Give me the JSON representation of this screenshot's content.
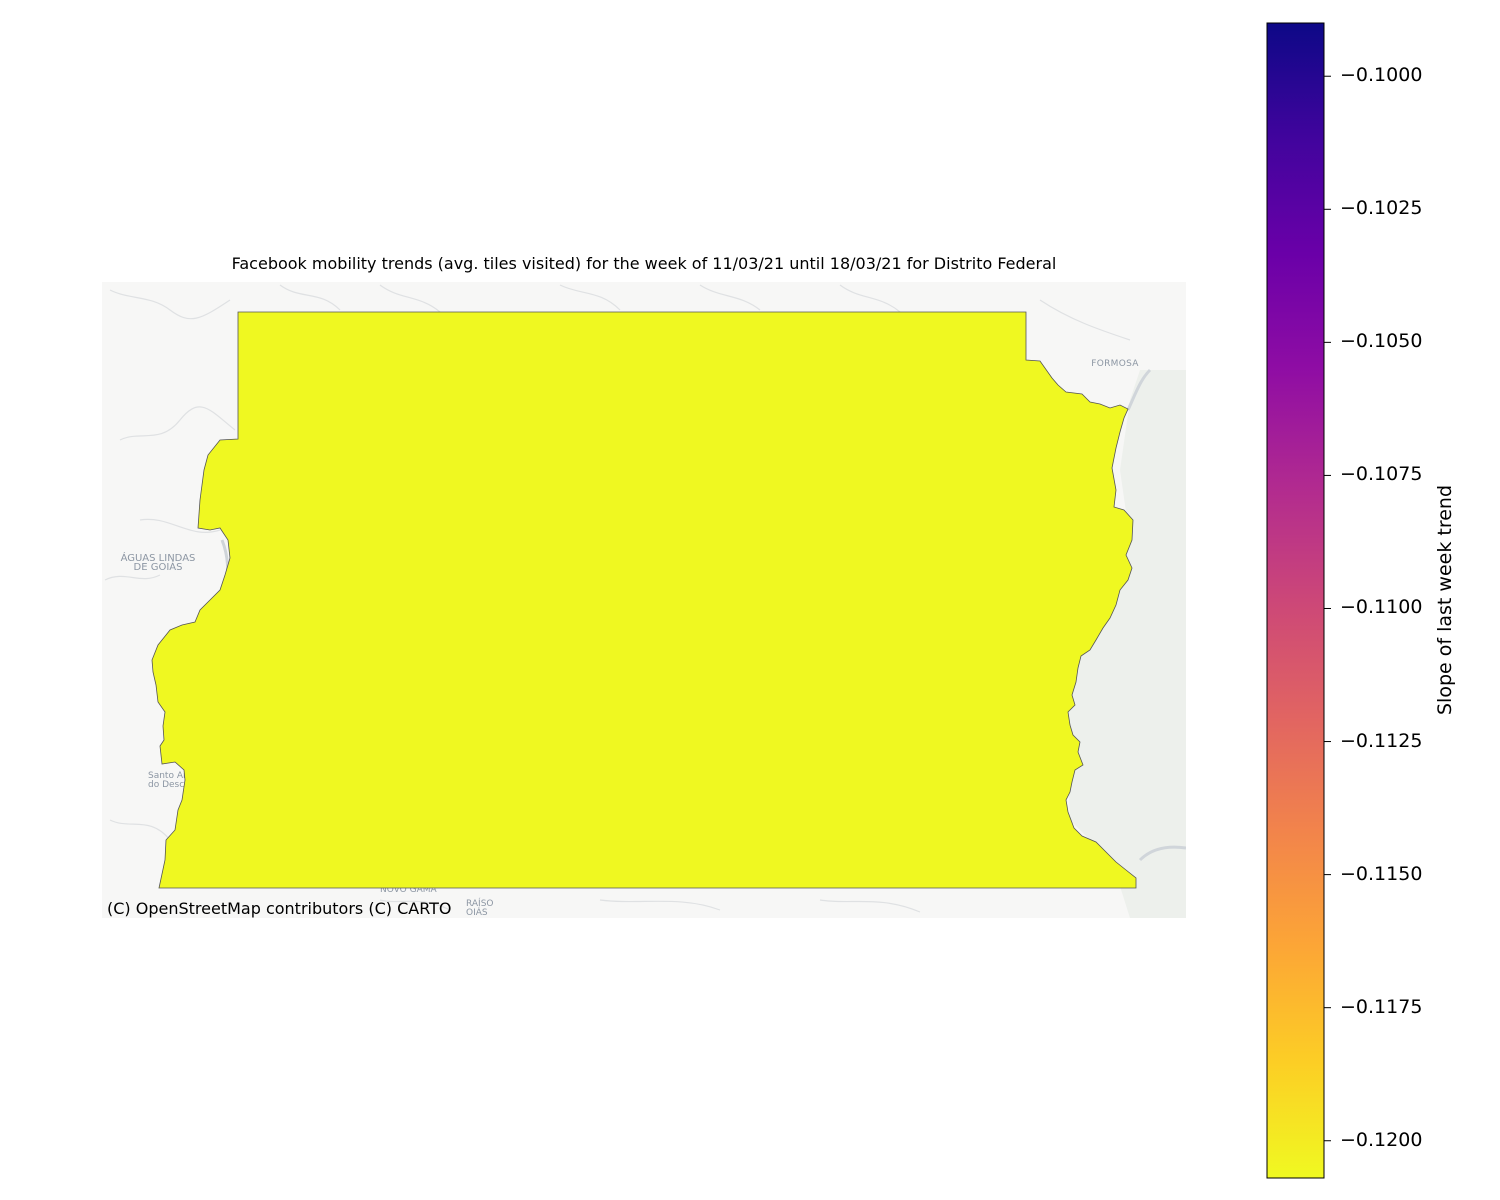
{
  "map": {
    "title": "Facebook mobility trends (avg. tiles visited) for the week of 11/03/21 until 18/03/21 for Distrito Federal",
    "attribution": "(C) OpenStreetMap contributors (C) CARTO",
    "basemap_places": {
      "formosa": "FORMOSA",
      "aguas_lindas_1": "ÁGUAS LINDAS",
      "aguas_lindas_2": "DE GOIÁS",
      "santo_1": "Santo Ant",
      "santo_2": "do Descob",
      "novo_gama": "NOVO GAMA",
      "paraiso_1": "RAÍSO",
      "paraiso_2": "OIÁS"
    },
    "region": {
      "name": "Distrito Federal",
      "value": -0.1205,
      "fill": "#eff821"
    },
    "colorbar": {
      "label": "Slope of last week trend",
      "colormap": "plasma",
      "range": [
        -0.1207,
        -0.099
      ],
      "ticks": [
        "−0.1000",
        "−0.1025",
        "−0.1050",
        "−0.1075",
        "−0.1100",
        "−0.1125",
        "−0.1150",
        "−0.1175",
        "−0.1200"
      ]
    }
  }
}
